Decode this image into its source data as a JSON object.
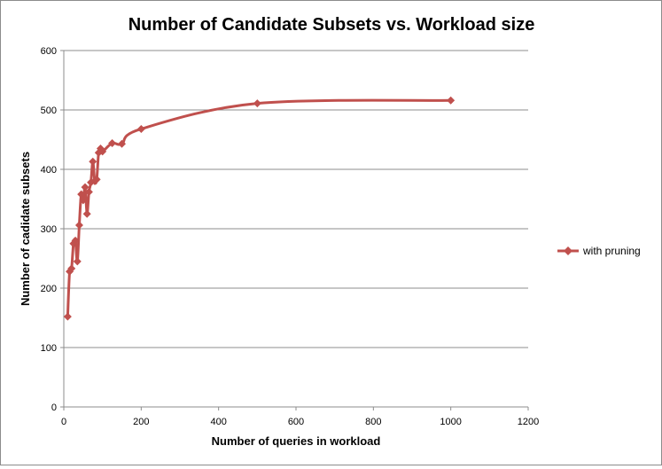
{
  "chart_data": {
    "type": "scatter",
    "title": "Number of Candidate Subsets vs. Workload size",
    "xlabel": "Number of queries in workload",
    "ylabel": "Number of cadidate subsets",
    "xlim": [
      0,
      1200
    ],
    "ylim": [
      0,
      600
    ],
    "xticks": [
      0,
      200,
      400,
      600,
      800,
      1000,
      1200
    ],
    "yticks": [
      0,
      100,
      200,
      300,
      400,
      500,
      600
    ],
    "grid": "horizontal",
    "legend_position": "right",
    "line_style": "smoothed",
    "series": [
      {
        "name": "with pruning",
        "color": "#c0504d",
        "marker": "diamond",
        "points": [
          {
            "x": 10,
            "y": 152
          },
          {
            "x": 15,
            "y": 228
          },
          {
            "x": 20,
            "y": 233
          },
          {
            "x": 25,
            "y": 275
          },
          {
            "x": 30,
            "y": 280
          },
          {
            "x": 35,
            "y": 245
          },
          {
            "x": 40,
            "y": 306
          },
          {
            "x": 45,
            "y": 358
          },
          {
            "x": 50,
            "y": 348
          },
          {
            "x": 55,
            "y": 370
          },
          {
            "x": 60,
            "y": 325
          },
          {
            "x": 65,
            "y": 362
          },
          {
            "x": 70,
            "y": 378
          },
          {
            "x": 75,
            "y": 413
          },
          {
            "x": 80,
            "y": 380
          },
          {
            "x": 85,
            "y": 383
          },
          {
            "x": 90,
            "y": 428
          },
          {
            "x": 95,
            "y": 435
          },
          {
            "x": 100,
            "y": 430
          },
          {
            "x": 125,
            "y": 444
          },
          {
            "x": 150,
            "y": 443
          },
          {
            "x": 200,
            "y": 468
          },
          {
            "x": 500,
            "y": 511
          },
          {
            "x": 1000,
            "y": 516
          }
        ]
      }
    ]
  }
}
